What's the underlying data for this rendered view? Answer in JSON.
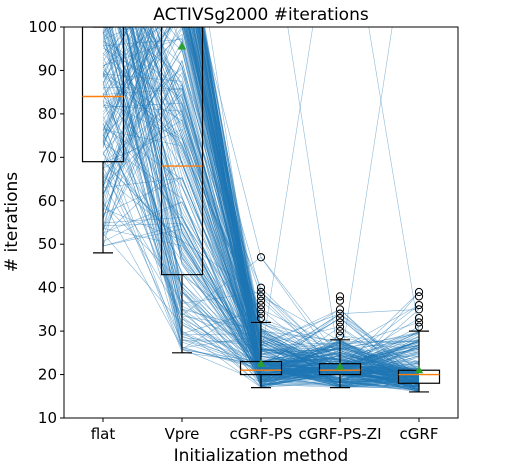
{
  "chart_data": {
    "type": "box",
    "title": "ACTIVSg2000 #iterations",
    "xlabel": "Initialization method",
    "ylabel": "# iterations",
    "ylim": [
      10,
      100
    ],
    "yticks": [
      10,
      20,
      30,
      40,
      50,
      60,
      70,
      80,
      90,
      100
    ],
    "categories": [
      "flat",
      "Vpre",
      "cGRF-PS",
      "cGRF-PS-ZI",
      "cGRF"
    ],
    "boxes": [
      {
        "category": "flat",
        "whisker_low": 48,
        "q1": 69,
        "median": 84,
        "q3": 100,
        "whisker_high": 100,
        "mean": null,
        "outliers": []
      },
      {
        "category": "Vpre",
        "whisker_low": 25,
        "q1": 43,
        "median": 68,
        "q3": 100,
        "whisker_high": 100,
        "mean": 95.5,
        "outliers": []
      },
      {
        "category": "cGRF-PS",
        "whisker_low": 17,
        "q1": 20,
        "median": 21,
        "q3": 23,
        "whisker_high": 32,
        "mean": 22.5,
        "outliers": [
          33,
          34,
          35,
          36,
          37,
          38,
          39,
          40,
          47
        ]
      },
      {
        "category": "cGRF-PS-ZI",
        "whisker_low": 17,
        "q1": 20,
        "median": 21,
        "q3": 22.5,
        "whisker_high": 28,
        "mean": 21.8,
        "outliers": [
          29,
          30,
          31,
          32,
          33,
          34,
          35,
          37,
          38
        ]
      },
      {
        "category": "cGRF",
        "whisker_low": 16,
        "q1": 18,
        "median": 20,
        "q3": 21,
        "whisker_high": 30,
        "mean": 21,
        "outliers": [
          31,
          32,
          33,
          35,
          36,
          38,
          39
        ]
      }
    ],
    "connecting_lines": "one line per case joining its iteration counts across methods",
    "colors": {
      "lines": "#1f77b4",
      "median": "#ff7f0e",
      "mean": "#2ca02c",
      "box": "#000000"
    },
    "grid": false,
    "legend": "none"
  }
}
